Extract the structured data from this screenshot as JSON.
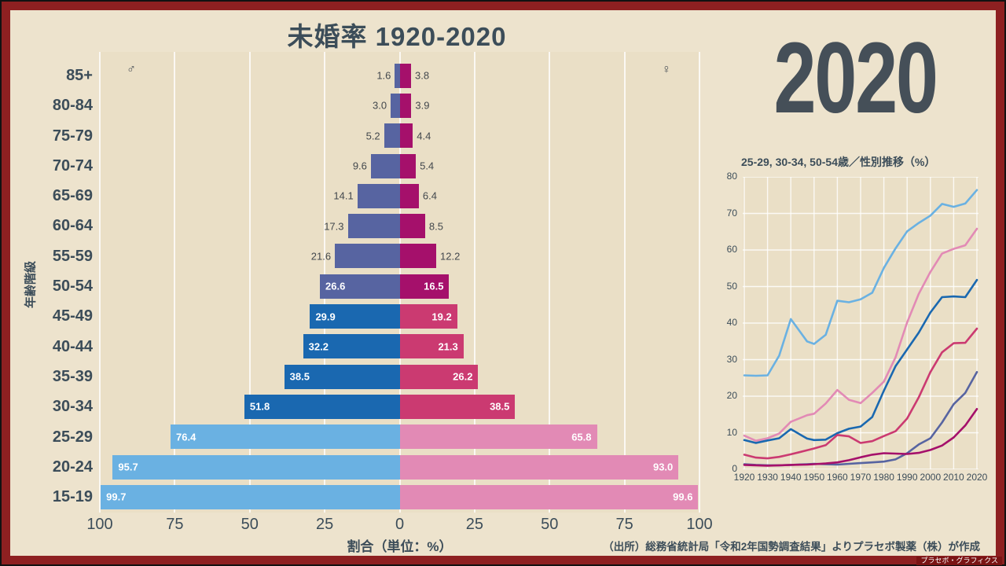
{
  "frame": {
    "border_color": "#8e2021",
    "edge_color": "#121212",
    "background": "#ede3cd"
  },
  "title": "未婚率 1920-2020",
  "year_display": "2020",
  "watermark": "プラセボ・グラフィクス",
  "footer": {
    "source": "（出所）総務省統計局「令和2年国勢調査結果」よりプラセボ製薬（株）が作成"
  },
  "pyramid": {
    "ylabel": "年齢階級",
    "xlabel": "割合（単位：%）",
    "male_symbol": "♂",
    "female_symbol": "♀",
    "x_ticks": [
      "100",
      "75",
      "50",
      "25",
      "0",
      "25",
      "50",
      "75",
      "100"
    ]
  },
  "trend": {
    "title": "25-29, 30-34, 50-54歳／性別推移（%）",
    "y_ticks": [
      0,
      10,
      20,
      30,
      40,
      50,
      60,
      70,
      80
    ],
    "x_ticks": [
      1920,
      1930,
      1940,
      1950,
      1960,
      1970,
      1980,
      1990,
      2000,
      2010,
      2020
    ]
  },
  "chart_data": [
    {
      "type": "bar",
      "subtype": "population_pyramid",
      "title": "未婚率 1920-2020",
      "xlabel": "割合（単位：%）",
      "ylabel": "年齢階級",
      "axis_max": 100,
      "categories": [
        "85+",
        "80-84",
        "75-79",
        "70-74",
        "65-69",
        "60-64",
        "55-59",
        "50-54",
        "45-49",
        "40-44",
        "35-39",
        "30-34",
        "25-29",
        "20-24",
        "15-19"
      ],
      "series": [
        {
          "name": "男性",
          "side": "left",
          "values": [
            1.6,
            3.0,
            5.2,
            9.6,
            14.1,
            17.3,
            21.6,
            26.6,
            29.9,
            32.2,
            38.5,
            51.8,
            76.4,
            95.7,
            99.7
          ]
        },
        {
          "name": "女性",
          "side": "right",
          "values": [
            3.8,
            3.9,
            4.4,
            5.4,
            6.4,
            8.5,
            12.2,
            16.5,
            19.2,
            21.3,
            26.2,
            38.5,
            65.8,
            93.0,
            99.6
          ]
        }
      ],
      "groups": [
        "old",
        "old",
        "old",
        "old",
        "old",
        "old",
        "old",
        "old",
        "mid",
        "mid",
        "mid",
        "mid",
        "young",
        "young",
        "young"
      ],
      "palette": {
        "male": {
          "young": "#6ab1e2",
          "mid": "#1a68b0",
          "old": "#5764a1"
        },
        "female": {
          "young": "#e28ab5",
          "mid": "#cb3a71",
          "old": "#a5106b"
        }
      },
      "inside_label_from_index": 7
    },
    {
      "type": "line",
      "title": "25-29, 30-34, 50-54歳／性別推移（%）",
      "ylim": [
        0,
        80
      ],
      "xlim": [
        1920,
        2020
      ],
      "grid": true,
      "x": [
        1920,
        1925,
        1930,
        1935,
        1940,
        1947,
        1950,
        1955,
        1960,
        1965,
        1970,
        1975,
        1980,
        1985,
        1990,
        1995,
        2000,
        2005,
        2010,
        2015,
        2020
      ],
      "series": [
        {
          "name": "25-29歳 男性",
          "color": "#6ab1e2",
          "values": [
            25.7,
            25.6,
            25.7,
            31.1,
            41.1,
            35.0,
            34.3,
            36.8,
            46.1,
            45.7,
            46.5,
            48.3,
            55.1,
            60.4,
            65.1,
            67.4,
            69.4,
            72.6,
            71.8,
            72.7,
            76.4
          ]
        },
        {
          "name": "25-29歳 女性",
          "color": "#e28ab5",
          "values": [
            9.2,
            7.8,
            8.5,
            9.8,
            13.0,
            14.8,
            15.2,
            18.0,
            21.7,
            19.0,
            18.1,
            20.9,
            24.0,
            30.6,
            40.2,
            48.0,
            54.0,
            59.0,
            60.3,
            61.3,
            65.8
          ]
        },
        {
          "name": "30-34歳 男性",
          "color": "#1a68b0",
          "values": [
            8.0,
            7.2,
            7.9,
            8.5,
            11.0,
            8.4,
            8.0,
            8.1,
            9.9,
            11.1,
            11.7,
            14.3,
            21.5,
            28.2,
            32.8,
            37.4,
            42.9,
            47.1,
            47.3,
            47.1,
            51.8
          ]
        },
        {
          "name": "30-34歳 女性",
          "color": "#cb3a71",
          "values": [
            4.0,
            3.2,
            3.0,
            3.4,
            4.1,
            5.2,
            5.7,
            6.6,
            9.4,
            9.0,
            7.2,
            7.7,
            9.1,
            10.4,
            13.9,
            19.7,
            26.6,
            32.0,
            34.5,
            34.6,
            38.5
          ]
        },
        {
          "name": "50-54歳 男性",
          "color": "#5764a1",
          "values": [
            1.4,
            1.2,
            1.1,
            1.1,
            1.2,
            1.4,
            1.5,
            1.4,
            1.3,
            1.5,
            1.7,
            1.9,
            2.1,
            2.7,
            4.4,
            6.8,
            8.5,
            12.8,
            17.8,
            20.9,
            26.6
          ]
        },
        {
          "name": "50-54歳 女性",
          "color": "#a5106b",
          "values": [
            1.2,
            1.1,
            1.0,
            1.1,
            1.2,
            1.3,
            1.4,
            1.6,
            1.9,
            2.5,
            3.3,
            4.0,
            4.4,
            4.3,
            4.2,
            4.5,
            5.3,
            6.5,
            8.7,
            12.0,
            16.5
          ]
        }
      ]
    }
  ]
}
